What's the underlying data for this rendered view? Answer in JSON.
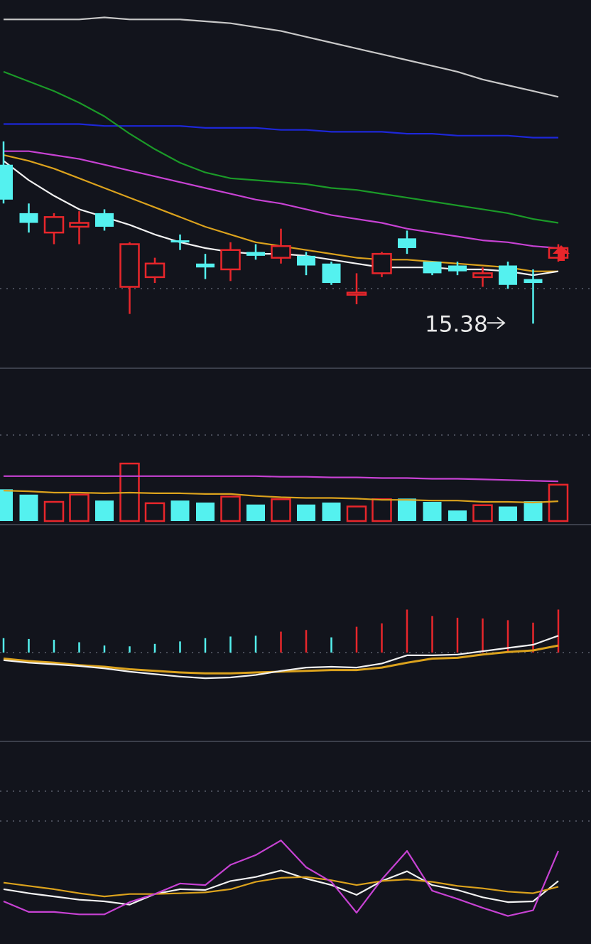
{
  "colors": {
    "background": "#12141c",
    "up": "#e8262b",
    "down": "#54f1ef",
    "ma5": "#f2f2f2",
    "ma10": "#dba21d",
    "ma20": "#c742d3",
    "ma30": "#1b9a28",
    "ma60": "#1d27d8",
    "ma120": "#c8c8c8",
    "dotted_grid": "#5a5e6c",
    "separator": "#3b3f4b"
  },
  "chart_data": [
    {
      "type": "candlestick",
      "panel": "price",
      "annotation": {
        "text": "15.38",
        "value": 15.38,
        "index": 20
      },
      "candles": [
        {
          "o": 16.2,
          "h": 16.32,
          "l": 16.0,
          "c": 16.02
        },
        {
          "o": 15.95,
          "h": 16.0,
          "l": 15.85,
          "c": 15.9
        },
        {
          "o": 15.85,
          "h": 15.95,
          "l": 15.79,
          "c": 15.93
        },
        {
          "o": 15.88,
          "h": 15.96,
          "l": 15.79,
          "c": 15.9
        },
        {
          "o": 15.95,
          "h": 15.97,
          "l": 15.86,
          "c": 15.88
        },
        {
          "o": 15.57,
          "h": 15.8,
          "l": 15.43,
          "c": 15.79
        },
        {
          "o": 15.62,
          "h": 15.72,
          "l": 15.59,
          "c": 15.69
        },
        {
          "o": 15.81,
          "h": 15.84,
          "l": 15.76,
          "c": 15.8
        },
        {
          "o": 15.69,
          "h": 15.74,
          "l": 15.61,
          "c": 15.67
        },
        {
          "o": 15.66,
          "h": 15.8,
          "l": 15.6,
          "c": 15.76
        },
        {
          "o": 15.75,
          "h": 15.79,
          "l": 15.71,
          "c": 15.73
        },
        {
          "o": 15.72,
          "h": 15.87,
          "l": 15.69,
          "c": 15.78
        },
        {
          "o": 15.73,
          "h": 15.75,
          "l": 15.63,
          "c": 15.68
        },
        {
          "o": 15.69,
          "h": 15.7,
          "l": 15.58,
          "c": 15.59
        },
        {
          "o": 15.54,
          "h": 15.64,
          "l": 15.48,
          "c": 15.54
        },
        {
          "o": 15.64,
          "h": 15.75,
          "l": 15.62,
          "c": 15.74
        },
        {
          "o": 15.82,
          "h": 15.86,
          "l": 15.74,
          "c": 15.77
        },
        {
          "o": 15.7,
          "h": 15.7,
          "l": 15.63,
          "c": 15.64
        },
        {
          "o": 15.68,
          "h": 15.7,
          "l": 15.63,
          "c": 15.65
        },
        {
          "o": 15.62,
          "h": 15.67,
          "l": 15.57,
          "c": 15.64
        },
        {
          "o": 15.68,
          "h": 15.7,
          "l": 15.56,
          "c": 15.58
        },
        {
          "o": 15.61,
          "h": 15.66,
          "l": 15.38,
          "c": 15.59
        },
        {
          "o": 15.72,
          "h": 15.79,
          "l": 15.7,
          "c": 15.77
        }
      ],
      "moving_averages": [
        {
          "key": "ma5",
          "values": [
            16.22,
            16.12,
            16.04,
            15.97,
            15.93,
            15.89,
            15.84,
            15.8,
            15.77,
            15.75,
            15.74,
            15.74,
            15.73,
            15.71,
            15.69,
            15.67,
            15.67,
            15.67,
            15.66,
            15.66,
            15.65,
            15.63,
            15.65
          ]
        },
        {
          "key": "ma10",
          "values": [
            16.25,
            16.22,
            16.18,
            16.13,
            16.08,
            16.03,
            15.98,
            15.93,
            15.88,
            15.84,
            15.8,
            15.78,
            15.76,
            15.74,
            15.72,
            15.71,
            15.71,
            15.7,
            15.69,
            15.68,
            15.67,
            15.65,
            15.65
          ]
        },
        {
          "key": "ma20",
          "values": [
            16.27,
            16.27,
            16.25,
            16.23,
            16.2,
            16.17,
            16.14,
            16.11,
            16.08,
            16.05,
            16.02,
            16.0,
            15.97,
            15.94,
            15.92,
            15.9,
            15.87,
            15.85,
            15.83,
            15.81,
            15.8,
            15.78,
            15.77
          ]
        },
        {
          "key": "ma30",
          "values": [
            16.68,
            16.63,
            16.58,
            16.52,
            16.45,
            16.36,
            16.28,
            16.21,
            16.16,
            16.13,
            16.12,
            16.11,
            16.1,
            16.08,
            16.07,
            16.05,
            16.03,
            16.01,
            15.99,
            15.97,
            15.95,
            15.92,
            15.9
          ]
        },
        {
          "key": "ma60",
          "values": [
            16.41,
            16.41,
            16.41,
            16.41,
            16.4,
            16.4,
            16.4,
            16.4,
            16.39,
            16.39,
            16.39,
            16.38,
            16.38,
            16.37,
            16.37,
            16.37,
            16.36,
            16.36,
            16.35,
            16.35,
            16.35,
            16.34,
            16.34
          ]
        },
        {
          "key": "ma120",
          "values": [
            16.95,
            16.95,
            16.95,
            16.95,
            16.96,
            16.95,
            16.95,
            16.95,
            16.94,
            16.93,
            16.91,
            16.89,
            16.86,
            16.83,
            16.8,
            16.77,
            16.74,
            16.71,
            16.68,
            16.64,
            16.61,
            16.58,
            16.55
          ]
        }
      ],
      "ylim": [
        15.15,
        17.05
      ]
    },
    {
      "type": "bar",
      "panel": "volume",
      "values": [
        48,
        40,
        29,
        40,
        31,
        87,
        27,
        31,
        28,
        37,
        25,
        33,
        25,
        28,
        22,
        33,
        34,
        29,
        16,
        24,
        22,
        30,
        55
      ],
      "up": [
        false,
        false,
        true,
        true,
        false,
        true,
        true,
        false,
        false,
        true,
        false,
        true,
        false,
        false,
        true,
        true,
        false,
        false,
        false,
        true,
        false,
        false,
        true
      ],
      "moving_averages": [
        {
          "key": "ma10",
          "values": [
            46,
            45,
            43,
            43,
            42,
            43,
            42,
            42,
            41,
            41,
            38,
            36,
            35,
            35,
            34,
            32,
            32,
            31,
            31,
            29,
            29,
            28,
            30
          ]
        },
        {
          "key": "ma20",
          "values": [
            68,
            68,
            68,
            68,
            68,
            68,
            68,
            68,
            68,
            68,
            68,
            67,
            67,
            66,
            66,
            65,
            65,
            64,
            64,
            63,
            62,
            61,
            60
          ]
        }
      ],
      "ylim": [
        0,
        100
      ]
    },
    {
      "type": "macd",
      "panel": "macd",
      "histogram": [
        -0.5,
        -0.6,
        -0.7,
        -1.0,
        -1.4,
        -1.5,
        -1.2,
        -0.9,
        -0.5,
        -0.3,
        -0.2,
        0.3,
        0.5,
        -0.4,
        0.9,
        1.3,
        3.0,
        2.2,
        2.0,
        1.9,
        1.7,
        1.4,
        3.0
      ],
      "dif": [
        -3.2,
        -3.5,
        -3.7,
        -3.9,
        -4.2,
        -4.6,
        -4.9,
        -5.2,
        -5.4,
        -5.3,
        -5.0,
        -4.5,
        -4.1,
        -4.0,
        -4.1,
        -3.6,
        -2.6,
        -2.6,
        -2.5,
        -2.1,
        -1.7,
        -1.3,
        -0.2
      ],
      "dea": [
        -3.0,
        -3.3,
        -3.5,
        -3.8,
        -4.0,
        -4.3,
        -4.5,
        -4.7,
        -4.8,
        -4.8,
        -4.7,
        -4.6,
        -4.5,
        -4.4,
        -4.4,
        -4.1,
        -3.5,
        -3.0,
        -2.9,
        -2.5,
        -2.2,
        -2.0,
        -1.4
      ],
      "ylim": [
        -12,
        8
      ]
    },
    {
      "type": "line",
      "panel": "kdj",
      "series": [
        {
          "key": "k",
          "values": [
            33,
            28,
            24,
            20,
            18,
            14,
            27,
            33,
            32,
            43,
            48,
            56,
            46,
            38,
            26,
            43,
            55,
            38,
            32,
            23,
            17,
            18,
            43
          ]
        },
        {
          "key": "d",
          "values": [
            41,
            37,
            33,
            28,
            24,
            27,
            27,
            28,
            29,
            33,
            42,
            47,
            48,
            44,
            38,
            43,
            45,
            42,
            37,
            34,
            30,
            28,
            36
          ]
        },
        {
          "key": "j",
          "values": [
            18,
            5,
            5,
            2,
            2,
            17,
            27,
            40,
            38,
            63,
            75,
            93,
            60,
            42,
            4,
            45,
            80,
            31,
            21,
            10,
            0,
            7,
            80
          ]
        }
      ],
      "ylim": [
        -10,
        200
      ]
    }
  ]
}
